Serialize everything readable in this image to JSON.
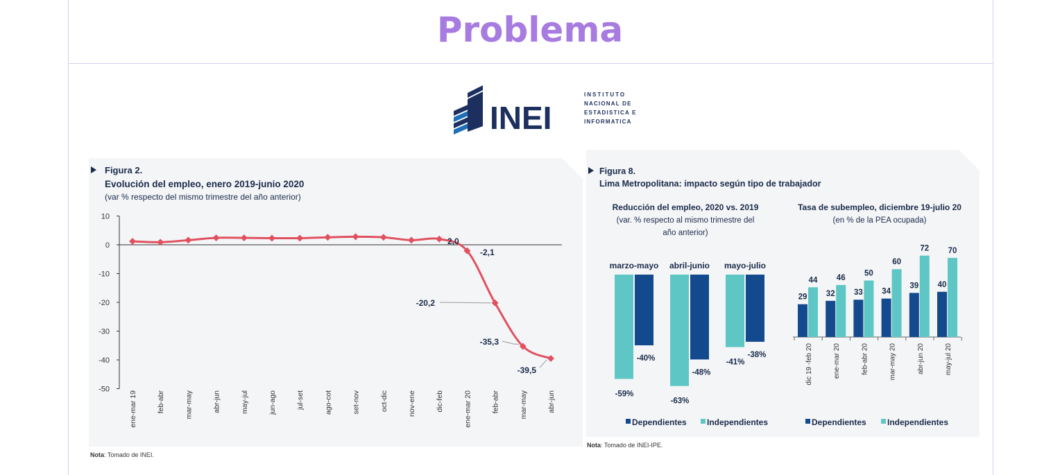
{
  "header": {
    "title": "Problema"
  },
  "logo": {
    "wordmark": "INEI",
    "lines": [
      "INSTITUTO",
      "NACIONAL DE",
      "ESTADISTICA E",
      "INFORMATICA"
    ]
  },
  "colors": {
    "title": "#a77be0",
    "line": "#e0515f",
    "dark": "#134a8e",
    "light": "#5ec6c4",
    "heading": "#1a2b4a"
  },
  "figure2": {
    "fig_label": "Figura 2.",
    "title": "Evolución del empleo, enero 2019-junio 2020",
    "subtitle": "(var % respecto del mismo trimestre del año anterior)",
    "note_label": "Nota",
    "note_text": ": Tomado de INEI."
  },
  "figure8": {
    "fig_label": "Figura 8.",
    "title": "Lima Metropolitana: impacto según tipo de trabajador",
    "left_title": "Reducción del empleo, 2020 vs. 2019",
    "left_sub1": "(var. % respecto al mismo trimestre del",
    "left_sub2": "año anterior)",
    "right_title": "Tasa de subempleo, diciembre 19-julio 20",
    "right_sub": "(en % de la PEA ocupada)",
    "note_label": "Nota",
    "note_text": ": Tomado de INEI-IPE."
  },
  "chart_data": [
    {
      "type": "line",
      "title": "Evolución del empleo, enero 2019-junio 2020",
      "subtitle": "(var % respecto del mismo trimestre del año anterior)",
      "categories": [
        "ene-mar 19",
        "feb-abr",
        "mar-may",
        "abr-jun",
        "may-jul",
        "jun-ago",
        "jul-set",
        "ago-cot",
        "set-nov",
        "oct-dic",
        "nov-ene",
        "dic-feb",
        "ene-mar 20",
        "feb-abr",
        "mar-may",
        "abr-jun"
      ],
      "values": [
        1.2,
        0.9,
        1.6,
        2.4,
        2.4,
        2.3,
        2.3,
        2.6,
        2.8,
        2.6,
        1.6,
        2.0,
        -2.1,
        -20.2,
        -35.3,
        -39.5
      ],
      "data_labels": [
        {
          "index": 11,
          "text": "2,0"
        },
        {
          "index": 12,
          "text": "-2,1"
        },
        {
          "index": 13,
          "text": "-20,2"
        },
        {
          "index": 14,
          "text": "-35,3"
        },
        {
          "index": 15,
          "text": "-39,5"
        }
      ],
      "yticks": [
        "10",
        "0",
        "-10",
        "-20",
        "-30",
        "-40",
        "-50"
      ],
      "ylim": [
        -50,
        10
      ],
      "color": "#e0515f"
    },
    {
      "type": "bar",
      "title": "Reducción del empleo, 2020 vs. 2019",
      "categories": [
        "marzo-mayo",
        "abril-junio",
        "mayo-julio"
      ],
      "series": [
        {
          "name": "Independientes",
          "values": [
            -59,
            -63,
            -41
          ],
          "labels": [
            "-59%",
            "-63%",
            "-41%"
          ],
          "color": "#5ec6c4"
        },
        {
          "name": "Dependientes",
          "values": [
            -40,
            -48,
            -38
          ],
          "labels": [
            "-40%",
            "-48%",
            "-38%"
          ],
          "color": "#134a8e"
        }
      ],
      "legend": [
        "Dependientes",
        "Independientes"
      ]
    },
    {
      "type": "bar",
      "title": "Tasa de subempleo, diciembre 19-julio 20",
      "categories": [
        "dic 19 -feb 20",
        "ene-mar 20",
        "feb-abr 20",
        "mar-may 20",
        "abr-jun 20",
        "may-jul 20"
      ],
      "series": [
        {
          "name": "Dependientes",
          "values": [
            29,
            32,
            33,
            34,
            39,
            40
          ],
          "color": "#134a8e"
        },
        {
          "name": "Independientes",
          "values": [
            44,
            46,
            50,
            60,
            72,
            70
          ],
          "color": "#5ec6c4"
        }
      ],
      "legend": [
        "Dependientes",
        "Independientes"
      ]
    }
  ]
}
